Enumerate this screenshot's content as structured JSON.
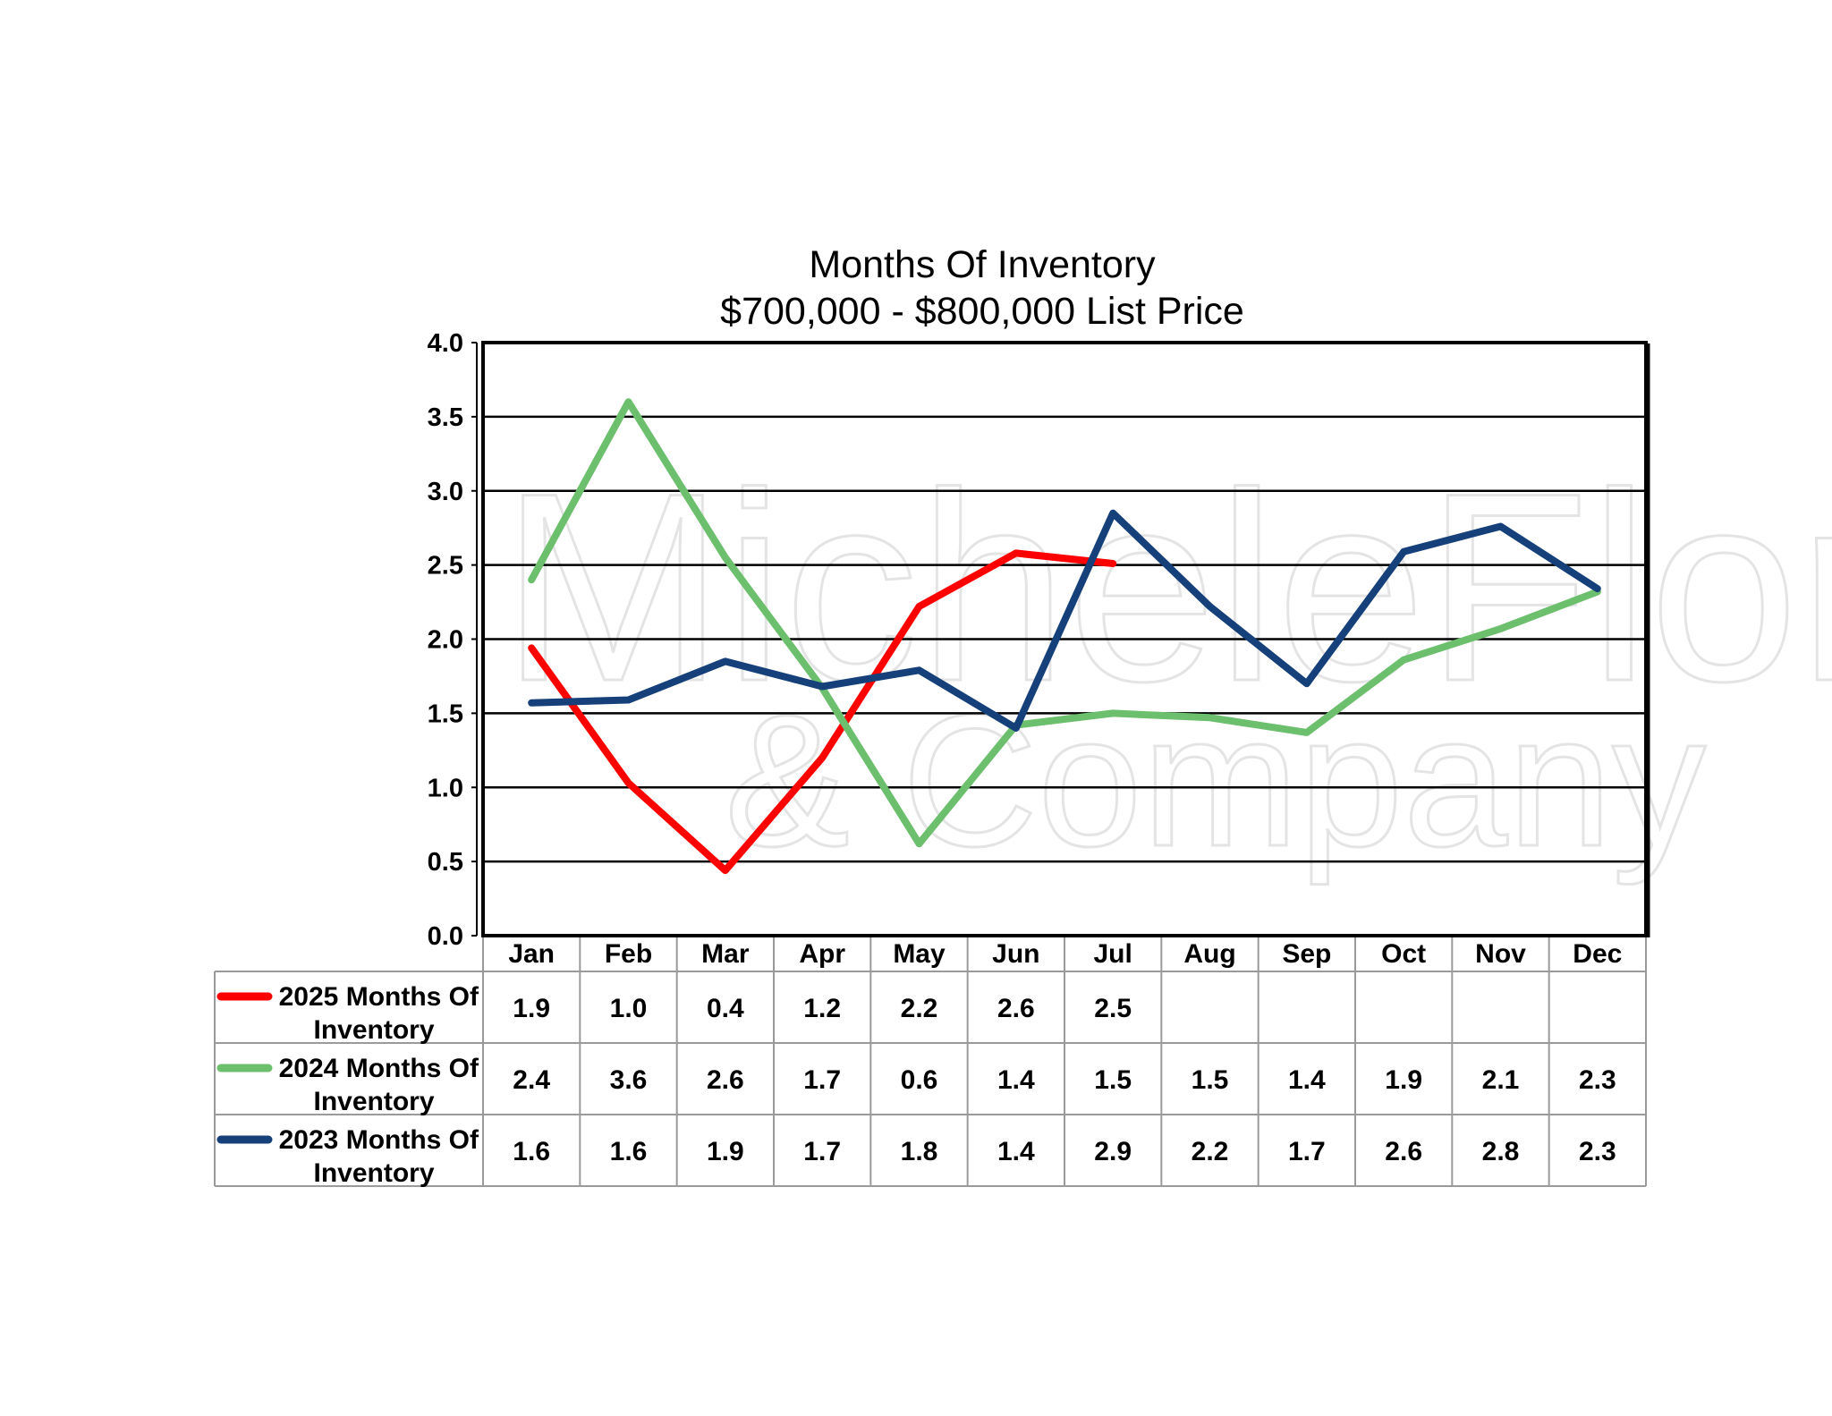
{
  "chart_data": {
    "type": "line",
    "title": "Months Of Inventory",
    "subtitle": "$700,000 - $800,000 List Price",
    "xlabel": "",
    "ylabel": "",
    "ylim": [
      0,
      4
    ],
    "ytick_step": 0.5,
    "yticks": [
      "0.0",
      "0.5",
      "1.0",
      "1.5",
      "2.0",
      "2.5",
      "3.0",
      "3.5",
      "4.0"
    ],
    "grid": true,
    "legend_placement": "data-table-left",
    "categories": [
      "Jan",
      "Feb",
      "Mar",
      "Apr",
      "May",
      "Jun",
      "Jul",
      "Aug",
      "Sep",
      "Oct",
      "Nov",
      "Dec"
    ],
    "series": [
      {
        "name_line1": "2025 Months Of",
        "name_line2": "Inventory",
        "color": "#ff0000",
        "values": [
          1.94,
          1.03,
          0.44,
          1.2,
          2.22,
          2.58,
          2.51,
          null,
          null,
          null,
          null,
          null
        ],
        "labels": [
          "1.9",
          "1.0",
          "0.4",
          "1.2",
          "2.2",
          "2.6",
          "2.5",
          "",
          "",
          "",
          "",
          ""
        ]
      },
      {
        "name_line1": "2024 Months Of",
        "name_line2": "Inventory",
        "color": "#6cbf6c",
        "values": [
          2.4,
          3.6,
          2.55,
          1.67,
          0.62,
          1.42,
          1.5,
          1.47,
          1.37,
          1.86,
          2.07,
          2.32
        ],
        "labels": [
          "2.4",
          "3.6",
          "2.6",
          "1.7",
          "0.6",
          "1.4",
          "1.5",
          "1.5",
          "1.4",
          "1.9",
          "2.1",
          "2.3"
        ]
      },
      {
        "name_line1": "2023 Months Of",
        "name_line2": "Inventory",
        "color": "#15407a",
        "values": [
          1.57,
          1.59,
          1.85,
          1.68,
          1.79,
          1.4,
          2.85,
          2.22,
          1.7,
          2.59,
          2.76,
          2.34
        ],
        "labels": [
          "1.6",
          "1.6",
          "1.9",
          "1.7",
          "1.8",
          "1.4",
          "2.9",
          "2.2",
          "1.7",
          "2.6",
          "2.8",
          "2.3"
        ]
      }
    ]
  },
  "watermark": {
    "line1": "MicheleFlory",
    "line2": "& Company",
    "color": "#e6e6e6"
  }
}
